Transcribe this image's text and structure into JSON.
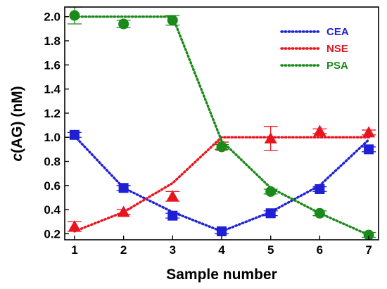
{
  "chart_data": {
    "type": "line",
    "x": [
      1,
      2,
      3,
      4,
      5,
      6,
      7
    ],
    "xlabel": "Sample number",
    "ylabel": {
      "prefix": "c",
      "suffix": "(AG) (nM)"
    },
    "xlim": [
      0.8,
      7.2
    ],
    "ylim": [
      0.15,
      2.08
    ],
    "xticks": [
      1,
      2,
      3,
      4,
      5,
      6,
      7
    ],
    "yticks": [
      "0.2",
      "0.4",
      "0.6",
      "0.8",
      "1.0",
      "1.2",
      "1.4",
      "1.6",
      "1.8",
      "2.0"
    ],
    "legend_position": "top-right",
    "series": [
      {
        "name": "CEA",
        "color": "#1f1fd6",
        "marker": "square",
        "trend": [
          1.01,
          0.58,
          0.38,
          0.22,
          0.38,
          0.6,
          0.98
        ],
        "values": [
          1.02,
          0.58,
          0.35,
          0.22,
          0.37,
          0.57,
          0.9
        ],
        "errors": [
          0.02,
          0.02,
          0.02,
          0.02,
          0.02,
          0.02,
          0.02
        ]
      },
      {
        "name": "NSE",
        "color": "#e8141e",
        "marker": "triangle",
        "trend": [
          0.22,
          0.38,
          0.62,
          1.0,
          1.0,
          1.0,
          1.0
        ],
        "values": [
          0.26,
          0.38,
          0.51,
          0.93,
          0.99,
          1.05,
          1.04
        ],
        "errors": [
          0.04,
          0.02,
          0.04,
          0.03,
          0.1,
          0.02,
          0.02
        ]
      },
      {
        "name": "PSA",
        "color": "#1a8a1a",
        "marker": "circle",
        "trend": [
          2.0,
          2.0,
          2.0,
          0.97,
          0.58,
          0.37,
          0.19
        ],
        "values": [
          2.01,
          1.94,
          1.97,
          0.92,
          0.55,
          0.37,
          0.19
        ],
        "errors": [
          0.07,
          0.03,
          0.04,
          0.02,
          0.02,
          0.02,
          0.02
        ]
      }
    ]
  }
}
